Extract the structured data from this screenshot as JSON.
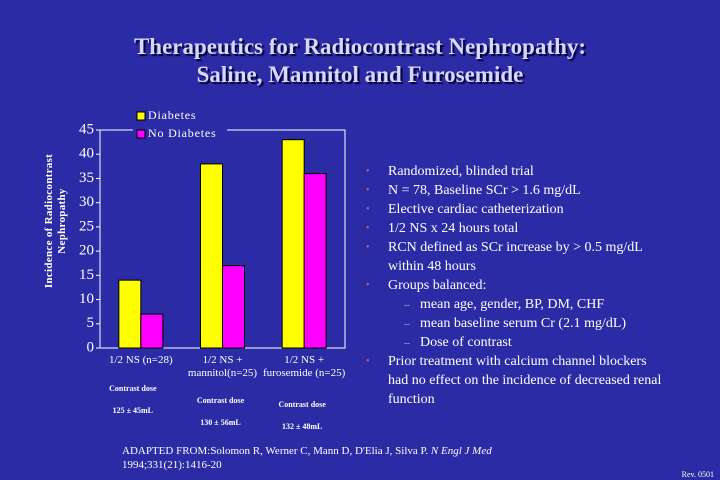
{
  "title": [
    "Therapeutics for Radiocontrast Nephropathy:",
    "Saline, Mannitol and Furosemide"
  ],
  "chart_data": {
    "type": "bar",
    "ylabel": "Incidence of Radiocontrast Nephropathy",
    "categories": [
      "1/2 NS (n=28)",
      "1/2 NS + mannitol(n=25)",
      "1/2 NS + furosemide (n=25)"
    ],
    "dose_heading": "Contrast dose",
    "doses": [
      "125 ± 45mL",
      "130 ± 56mL",
      "132 ± 48mL"
    ],
    "series": [
      {
        "name": "Diabetes",
        "color": "#ffff00",
        "values": [
          14,
          38,
          43
        ]
      },
      {
        "name": "No Diabetes",
        "color": "#ff00ff",
        "values": [
          7,
          17,
          36
        ]
      }
    ],
    "ylim": [
      0,
      45
    ],
    "yticks": [
      0,
      5,
      10,
      15,
      20,
      25,
      30,
      35,
      40,
      45
    ],
    "grid": false
  },
  "bullets": [
    {
      "text": "Randomized, blinded trial"
    },
    {
      "text": "N = 78, Baseline SCr > 1.6 mg/dL"
    },
    {
      "text": "Elective cardiac catheterization"
    },
    {
      "text": "1/2 NS x 24 hours total"
    },
    {
      "text": "RCN defined as SCr increase by > 0.5 mg/dL within 48 hours"
    },
    {
      "text": "Groups balanced:",
      "sub": [
        "mean age, gender, BP, DM, CHF",
        "mean baseline serum Cr (2.1 mg/dL)",
        "Dose of contrast"
      ]
    },
    {
      "text": "Prior treatment with calcium channel blockers had no effect on the incidence of decreased renal function"
    }
  ],
  "citation": {
    "prefix": "ADAPTED FROM:Solomon R, Werner C, Mann D, D'Elia J, Silva P.",
    "journal": "N Engl J Med",
    "ref": "1994;331(21):1416-20"
  },
  "revision": "Rev. 0501"
}
